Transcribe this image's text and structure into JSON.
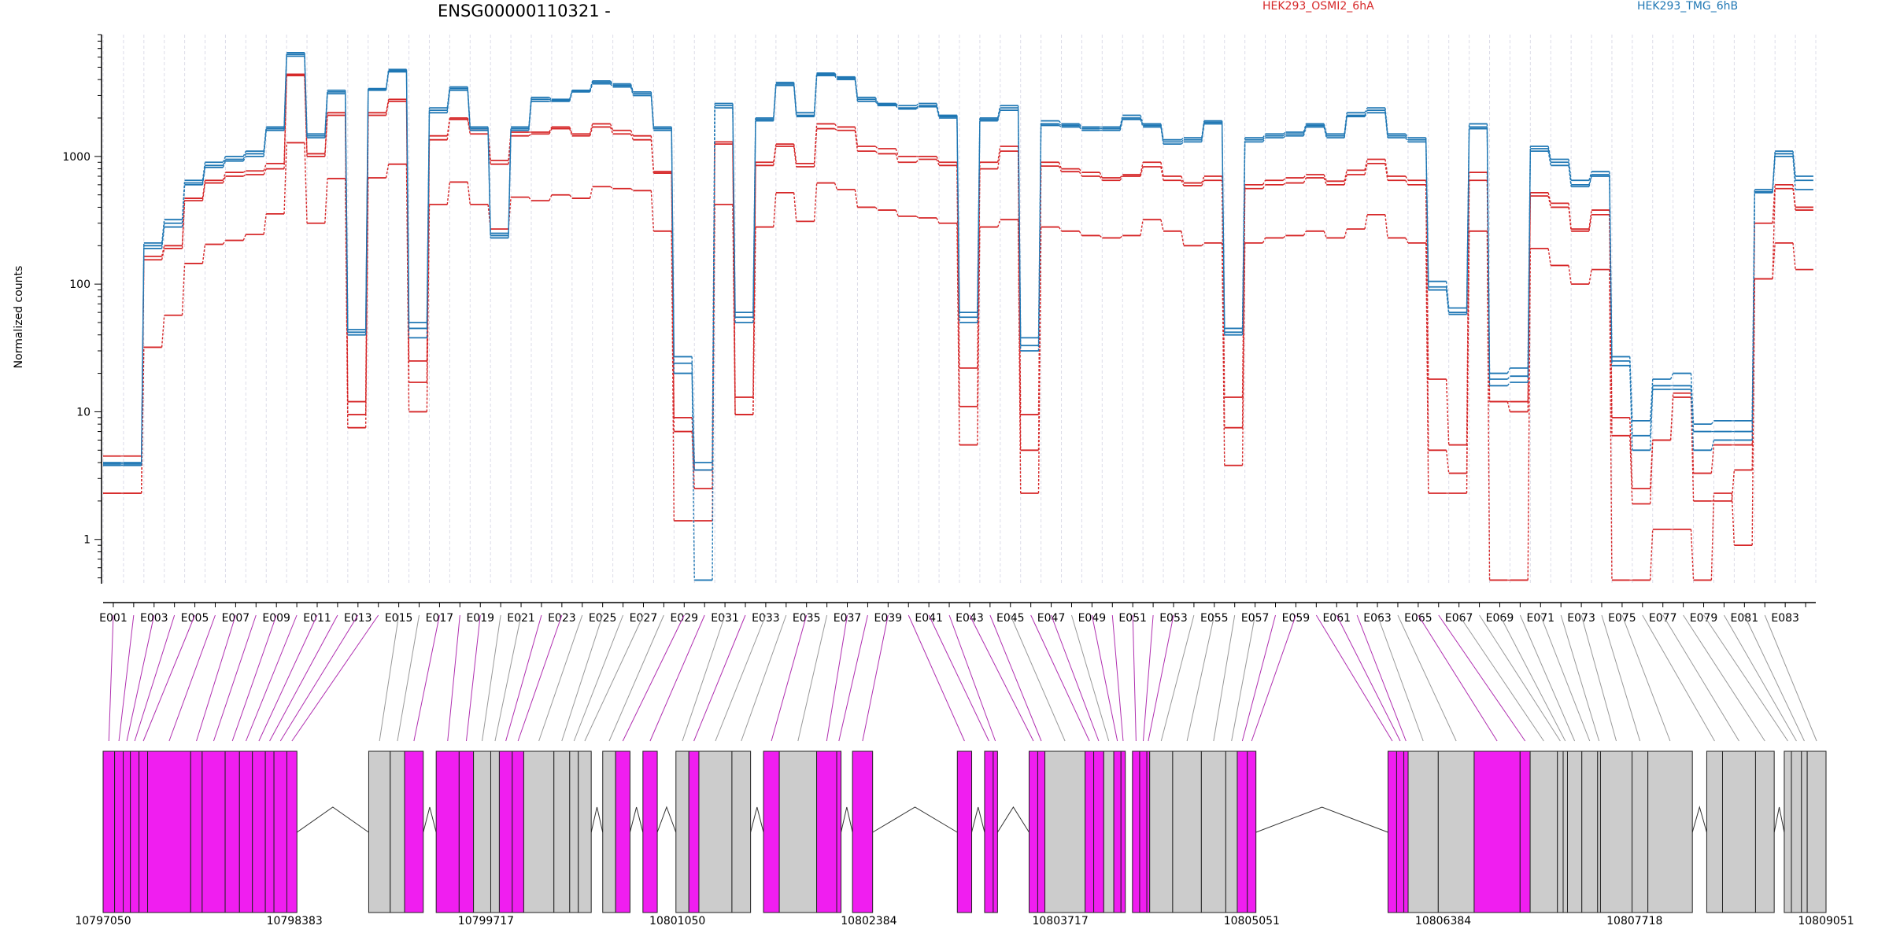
{
  "chart_data": {
    "type": "line",
    "title": "ENSG00000110321 -",
    "ylabel": "Normalized counts",
    "yscale": "log",
    "ylim": [
      0.45,
      9000
    ],
    "yticks": [
      1,
      10,
      100,
      1000
    ],
    "ytick_labels": [
      "1",
      "10",
      "100",
      "1000"
    ],
    "legend_placement": "top",
    "exon_tick_labels": [
      "E001",
      "E003",
      "E005",
      "E007",
      "E009",
      "E011",
      "E013",
      "E015",
      "E017",
      "E019",
      "E021",
      "E023",
      "E025",
      "E027",
      "E029",
      "E031",
      "E033",
      "E035",
      "E037",
      "E039",
      "E041",
      "E043",
      "E045",
      "E047",
      "E049",
      "E051",
      "E053",
      "E055",
      "E057",
      "E059",
      "E061",
      "E063",
      "E065",
      "E067",
      "E069",
      "E071",
      "E073",
      "E075",
      "E077",
      "E079",
      "E081",
      "E083"
    ],
    "genomic_range": [
      10797050,
      10809051
    ],
    "genomic_tick_labels": [
      "10797050",
      "10798383",
      "10799717",
      "10801050",
      "10802384",
      "10803717",
      "10805051",
      "10806384",
      "10807718",
      "10809051"
    ],
    "series": [
      {
        "name": "HEK293_OSMI2_6hA",
        "color": "#d62728",
        "values": [
          2.3,
          2.3,
          32,
          57,
          145,
          205,
          220,
          245,
          355,
          1280,
          300,
          670,
          7.5,
          680,
          870,
          10,
          420,
          630,
          420,
          270,
          480,
          450,
          500,
          470,
          580,
          560,
          540,
          260,
          1.4,
          1.4,
          420,
          9.5,
          280,
          520,
          310,
          620,
          550,
          400,
          380,
          340,
          330,
          300,
          5.5,
          280,
          320,
          2.3,
          280,
          260,
          240,
          230,
          240,
          320,
          260,
          200,
          210,
          3.8,
          210,
          230,
          240,
          260,
          230,
          270,
          350,
          230,
          210,
          2.3,
          2.3,
          260,
          0.48,
          0.48,
          190,
          140,
          100,
          130,
          0.48,
          0.48,
          1.2,
          1.2,
          0.48,
          2.3,
          0.9,
          110,
          210,
          130
        ]
      },
      {
        "name": "HEK293_OSMI2_6hA",
        "color": "#d62728",
        "values": [
          2.3,
          2.3,
          155,
          190,
          450,
          620,
          700,
          720,
          800,
          4300,
          1000,
          2100,
          9.5,
          2100,
          2700,
          17,
          1350,
          1950,
          1500,
          870,
          1450,
          1500,
          1650,
          1450,
          1700,
          1500,
          1350,
          740,
          7.0,
          2.5,
          1250,
          9.5,
          850,
          1200,
          830,
          1650,
          1600,
          1100,
          1050,
          900,
          950,
          850,
          11,
          800,
          1100,
          5.0,
          840,
          760,
          700,
          650,
          700,
          830,
          650,
          590,
          650,
          7.5,
          560,
          600,
          620,
          680,
          600,
          720,
          880,
          650,
          600,
          5.0,
          3.3,
          650,
          12,
          12,
          490,
          400,
          260,
          350,
          6.5,
          1.9,
          6.0,
          13,
          2.0,
          2.0,
          3.5,
          110,
          560,
          380
        ]
      },
      {
        "name": "HEK293_OSMI2_6hA",
        "color": "#d62728",
        "values": [
          4.5,
          4.5,
          165,
          200,
          470,
          650,
          750,
          770,
          880,
          4400,
          1050,
          2200,
          12,
          2200,
          2800,
          25,
          1450,
          2000,
          1600,
          930,
          1550,
          1550,
          1700,
          1500,
          1800,
          1600,
          1450,
          760,
          9.0,
          3.5,
          1300,
          13,
          900,
          1250,
          880,
          1800,
          1700,
          1200,
          1150,
          1000,
          1000,
          900,
          22,
          900,
          1200,
          9.5,
          900,
          800,
          750,
          680,
          720,
          900,
          700,
          620,
          700,
          13,
          600,
          650,
          680,
          720,
          640,
          780,
          950,
          700,
          650,
          18,
          5.5,
          750,
          12,
          10,
          520,
          430,
          270,
          380,
          9.0,
          2.5,
          6.0,
          14,
          3.3,
          5.5,
          5.5,
          300,
          600,
          400
        ]
      },
      {
        "name": "HEK293_TMG_6hB",
        "color": "#1f77b4",
        "values": [
          4.0,
          4.0,
          210,
          320,
          650,
          900,
          1000,
          1100,
          1700,
          6500,
          1500,
          3300,
          40,
          3400,
          4800,
          38,
          2400,
          3500,
          1700,
          250,
          1700,
          2900,
          2800,
          3300,
          3900,
          3700,
          3200,
          1700,
          20,
          4.0,
          2600,
          60,
          2000,
          3800,
          2200,
          4500,
          4200,
          2900,
          2600,
          2500,
          2600,
          2100,
          55,
          2000,
          2500,
          38,
          1900,
          1800,
          1700,
          1700,
          2100,
          1800,
          1350,
          1400,
          1900,
          45,
          1400,
          1500,
          1550,
          1800,
          1500,
          2200,
          2400,
          1500,
          1400,
          105,
          65,
          1800,
          20,
          22,
          1200,
          950,
          650,
          760,
          27,
          8.5,
          18,
          20,
          8.0,
          8.5,
          8.5,
          550,
          1100,
          700
        ]
      },
      {
        "name": "HEK293_TMG_6hB",
        "color": "#1f77b4",
        "values": [
          3.9,
          3.9,
          200,
          300,
          620,
          850,
          950,
          1050,
          1650,
          6300,
          1450,
          3200,
          42,
          3350,
          4700,
          45,
          2300,
          3400,
          1650,
          240,
          1650,
          2800,
          2750,
          3250,
          3800,
          3600,
          3100,
          1650,
          27,
          3.5,
          2500,
          55,
          1950,
          3700,
          2100,
          4400,
          4100,
          2800,
          2550,
          2400,
          2500,
          2050,
          60,
          1950,
          2400,
          33,
          1800,
          1750,
          1650,
          1650,
          2000,
          1750,
          1300,
          1350,
          1850,
          42,
          1350,
          1450,
          1500,
          1750,
          1450,
          2100,
          2300,
          1450,
          1350,
          95,
          60,
          1700,
          16,
          17,
          1150,
          900,
          600,
          720,
          25,
          6.5,
          16,
          16,
          7.0,
          7.0,
          7.0,
          530,
          1050,
          650
        ]
      },
      {
        "name": "HEK293_TMG_6hB",
        "color": "#1f77b4",
        "values": [
          3.8,
          3.8,
          190,
          280,
          600,
          820,
          920,
          1000,
          1600,
          6100,
          1400,
          3100,
          44,
          3300,
          4600,
          50,
          2200,
          3300,
          1600,
          230,
          1600,
          2700,
          2700,
          3200,
          3700,
          3500,
          3000,
          1600,
          24,
          0.48,
          2400,
          50,
          1900,
          3600,
          2050,
          4300,
          4000,
          2700,
          2500,
          2350,
          2450,
          2000,
          50,
          1900,
          2300,
          30,
          1750,
          1700,
          1600,
          1600,
          1950,
          1700,
          1250,
          1300,
          1800,
          40,
          1300,
          1400,
          1450,
          1700,
          1400,
          2050,
          2200,
          1400,
          1300,
          90,
          58,
          1650,
          18,
          19,
          1100,
          850,
          580,
          700,
          23,
          5.0,
          15,
          15,
          5.0,
          6.0,
          6.0,
          520,
          1000,
          550
        ]
      }
    ]
  },
  "legend": {
    "osmi_label": "HEK293_OSMI2_6hA",
    "tmg_label": "HEK293_TMG_6hB",
    "osmi_color": "#d62728",
    "tmg_color": "#1f77b4"
  },
  "gene_model": {
    "exon_color_grey": "#cccccc",
    "exon_color_magenta": "#f01ef0",
    "connector_grey": "#999999",
    "connector_magenta": "#b02fb0",
    "exons": [
      {
        "s": 10797050,
        "e": 10797130,
        "m": true
      },
      {
        "s": 10797130,
        "e": 10797190,
        "m": true
      },
      {
        "s": 10797190,
        "e": 10797240,
        "m": true
      },
      {
        "s": 10797240,
        "e": 10797300,
        "m": true
      },
      {
        "s": 10797300,
        "e": 10797360,
        "m": true
      },
      {
        "s": 10797360,
        "e": 10797660,
        "m": true
      },
      {
        "s": 10797660,
        "e": 10797740,
        "m": true
      },
      {
        "s": 10797740,
        "e": 10797900,
        "m": true
      },
      {
        "s": 10797900,
        "e": 10798000,
        "m": true
      },
      {
        "s": 10798000,
        "e": 10798090,
        "m": true
      },
      {
        "s": 10798090,
        "e": 10798180,
        "m": true
      },
      {
        "s": 10798180,
        "e": 10798240,
        "m": true
      },
      {
        "s": 10798240,
        "e": 10798330,
        "m": true
      },
      {
        "s": 10798330,
        "e": 10798400,
        "m": true
      },
      {
        "s": 10798900,
        "e": 10799050,
        "m": false
      },
      {
        "s": 10799050,
        "e": 10799150,
        "m": false
      },
      {
        "s": 10799150,
        "e": 10799280,
        "m": true
      },
      {
        "s": 10799370,
        "e": 10799530,
        "m": true
      },
      {
        "s": 10799530,
        "e": 10799630,
        "m": true
      },
      {
        "s": 10799630,
        "e": 10799750,
        "m": false
      },
      {
        "s": 10799750,
        "e": 10799810,
        "m": false
      },
      {
        "s": 10799810,
        "e": 10799900,
        "m": true
      },
      {
        "s": 10799900,
        "e": 10799980,
        "m": true
      },
      {
        "s": 10799980,
        "e": 10800190,
        "m": false
      },
      {
        "s": 10800190,
        "e": 10800300,
        "m": false
      },
      {
        "s": 10800300,
        "e": 10800360,
        "m": false
      },
      {
        "s": 10800360,
        "e": 10800450,
        "m": false
      },
      {
        "s": 10800530,
        "e": 10800620,
        "m": false
      },
      {
        "s": 10800620,
        "e": 10800720,
        "m": true
      },
      {
        "s": 10800810,
        "e": 10800910,
        "m": true
      },
      {
        "s": 10801040,
        "e": 10801130,
        "m": false
      },
      {
        "s": 10801130,
        "e": 10801200,
        "m": true
      },
      {
        "s": 10801200,
        "e": 10801430,
        "m": false
      },
      {
        "s": 10801430,
        "e": 10801560,
        "m": false
      },
      {
        "s": 10801650,
        "e": 10801760,
        "m": true
      },
      {
        "s": 10801760,
        "e": 10802020,
        "m": false
      },
      {
        "s": 10802020,
        "e": 10802160,
        "m": true
      },
      {
        "s": 10802160,
        "e": 10802190,
        "m": true
      },
      {
        "s": 10802270,
        "e": 10802410,
        "m": true
      },
      {
        "s": 10803000,
        "e": 10803100,
        "m": true
      },
      {
        "s": 10803190,
        "e": 10803250,
        "m": true
      },
      {
        "s": 10803250,
        "e": 10803280,
        "m": true
      },
      {
        "s": 10803500,
        "e": 10803560,
        "m": true
      },
      {
        "s": 10803560,
        "e": 10803610,
        "m": true
      },
      {
        "s": 10803610,
        "e": 10803890,
        "m": false
      },
      {
        "s": 10803890,
        "e": 10803950,
        "m": true
      },
      {
        "s": 10803950,
        "e": 10804020,
        "m": true
      },
      {
        "s": 10804020,
        "e": 10804090,
        "m": false
      },
      {
        "s": 10804090,
        "e": 10804140,
        "m": true
      },
      {
        "s": 10804140,
        "e": 10804170,
        "m": true
      },
      {
        "s": 10804220,
        "e": 10804270,
        "m": true
      },
      {
        "s": 10804270,
        "e": 10804320,
        "m": true
      },
      {
        "s": 10804320,
        "e": 10804340,
        "m": true
      },
      {
        "s": 10804340,
        "e": 10804500,
        "m": false
      },
      {
        "s": 10804500,
        "e": 10804700,
        "m": false
      },
      {
        "s": 10804700,
        "e": 10804870,
        "m": false
      },
      {
        "s": 10804870,
        "e": 10804950,
        "m": false
      },
      {
        "s": 10804950,
        "e": 10805020,
        "m": true
      },
      {
        "s": 10805020,
        "e": 10805080,
        "m": true
      },
      {
        "s": 10806000,
        "e": 10806060,
        "m": true
      },
      {
        "s": 10806060,
        "e": 10806110,
        "m": true
      },
      {
        "s": 10806110,
        "e": 10806140,
        "m": true
      },
      {
        "s": 10806140,
        "e": 10806350,
        "m": false
      },
      {
        "s": 10806350,
        "e": 10806600,
        "m": false
      },
      {
        "s": 10806600,
        "e": 10806920,
        "m": true
      },
      {
        "s": 10806920,
        "e": 10806990,
        "m": true
      },
      {
        "s": 10806990,
        "e": 10807180,
        "m": false
      },
      {
        "s": 10807180,
        "e": 10807220,
        "m": false
      },
      {
        "s": 10807220,
        "e": 10807250,
        "m": false
      },
      {
        "s": 10807250,
        "e": 10807350,
        "m": false
      },
      {
        "s": 10807350,
        "e": 10807460,
        "m": false
      },
      {
        "s": 10807460,
        "e": 10807480,
        "m": false
      },
      {
        "s": 10807480,
        "e": 10807700,
        "m": false
      },
      {
        "s": 10807700,
        "e": 10807810,
        "m": false
      },
      {
        "s": 10807810,
        "e": 10808120,
        "m": false
      },
      {
        "s": 10808220,
        "e": 10808330,
        "m": false
      },
      {
        "s": 10808330,
        "e": 10808560,
        "m": false
      },
      {
        "s": 10808560,
        "e": 10808690,
        "m": false
      },
      {
        "s": 10808760,
        "e": 10808810,
        "m": false
      },
      {
        "s": 10808810,
        "e": 10808880,
        "m": false
      },
      {
        "s": 10808880,
        "e": 10808920,
        "m": false
      },
      {
        "s": 10808920,
        "e": 10809051,
        "m": false
      }
    ],
    "introns": [
      [
        10798400,
        10798900
      ],
      [
        10799280,
        10799370
      ],
      [
        10800450,
        10800530
      ],
      [
        10800720,
        10800810
      ],
      [
        10800910,
        10801040
      ],
      [
        10801560,
        10801650
      ],
      [
        10802190,
        10802270
      ],
      [
        10802410,
        10803000
      ],
      [
        10803100,
        10803190
      ],
      [
        10803280,
        10803500
      ],
      [
        10805080,
        10806000
      ],
      [
        10808120,
        10808220
      ],
      [
        10808690,
        10808760
      ]
    ]
  }
}
